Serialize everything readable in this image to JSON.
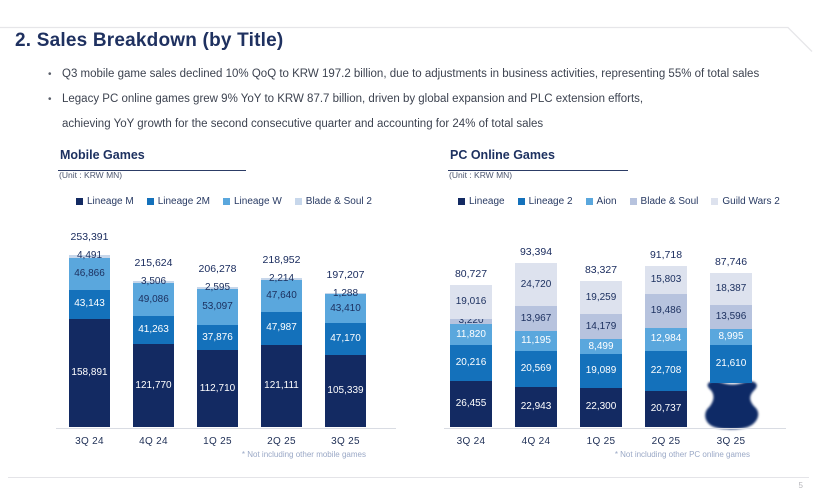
{
  "slide": {
    "title": "2. Sales Breakdown (by Title)",
    "bullets": [
      {
        "lines": [
          "Q3 mobile game sales declined 10% QoQ to KRW 197.2 billion, due to adjustments in business activities, representing 55% of total sales"
        ]
      },
      {
        "lines": [
          "Legacy PC online games grew 9% YoY to KRW 87.7 billion, driven by global expansion and PLC extension efforts,",
          "achieving YoY growth for the second consecutive quarter and accounting for 24% of total sales"
        ]
      }
    ],
    "page_number": "5"
  },
  "chart_data": [
    {
      "type": "bar",
      "stacked": true,
      "title": "Mobile Games",
      "unit_label": "(Unit : KRW MN)",
      "legend_position": "top",
      "grid": false,
      "categories": [
        "3Q 24",
        "4Q 24",
        "1Q 25",
        "2Q 25",
        "3Q 25"
      ],
      "series": [
        {
          "name": "Lineage M",
          "color": "#132a62",
          "label_color": "#ffffff",
          "values": [
            158891,
            121770,
            112710,
            121111,
            105339
          ]
        },
        {
          "name": "Lineage 2M",
          "color": "#1471bb",
          "label_color": "#ffffff",
          "values": [
            43143,
            41263,
            37876,
            47987,
            47170
          ]
        },
        {
          "name": "Lineage W",
          "color": "#5aa7dd",
          "label_color": "#1d3160",
          "values": [
            46866,
            49086,
            53097,
            47640,
            43410
          ]
        },
        {
          "name": "Blade & Soul 2",
          "color": "#c7d7eb",
          "label_color": "#1d3160",
          "values": [
            4491,
            3506,
            2595,
            2214,
            1288
          ]
        }
      ],
      "totals": [
        253391,
        215624,
        206278,
        218952,
        197207
      ],
      "ylim": [
        0,
        260000
      ],
      "footnote": "* Not including other mobile games"
    },
    {
      "type": "bar",
      "stacked": true,
      "title": "PC Online Games",
      "unit_label": "(Unit : KRW MN)",
      "legend_position": "top",
      "grid": false,
      "categories": [
        "3Q 24",
        "4Q 24",
        "1Q 25",
        "2Q 25",
        "3Q 25"
      ],
      "series": [
        {
          "name": "Lineage",
          "color": "#132a62",
          "label_color": "#ffffff",
          "values": [
            26455,
            22943,
            22300,
            20737,
            null
          ],
          "redacted": [
            false,
            false,
            false,
            false,
            true
          ]
        },
        {
          "name": "Lineage 2",
          "color": "#1471bb",
          "label_color": "#ffffff",
          "values": [
            20216,
            20569,
            19089,
            22708,
            21610
          ]
        },
        {
          "name": "Aion",
          "color": "#5aa7dd",
          "label_color": "#ffffff",
          "values": [
            11820,
            11195,
            8499,
            12984,
            8995
          ]
        },
        {
          "name": "Blade & Soul",
          "color": "#b7c3de",
          "label_color": "#1d3160",
          "values": [
            3220,
            13967,
            14179,
            19486,
            13596
          ]
        },
        {
          "name": "Guild Wars 2",
          "color": "#dde2ee",
          "label_color": "#1d3160",
          "values": [
            19016,
            24720,
            19259,
            15803,
            18387
          ]
        }
      ],
      "totals": [
        80727,
        93394,
        83327,
        91718,
        87746
      ],
      "ylim": [
        0,
        100000
      ],
      "footnote": "* Not including other PC online games"
    }
  ]
}
